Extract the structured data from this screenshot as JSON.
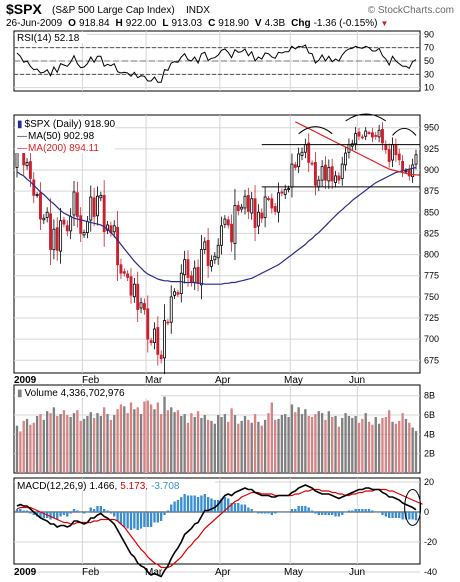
{
  "header": {
    "symbol": "$SPX",
    "name": "(S&P 500 Large Cap Index)",
    "exchange": "INDX",
    "watermark": "© StockCharts.com",
    "date": "26-Jun-2009",
    "o_label": "O",
    "o_value": "918.84",
    "h_label": "H",
    "h_value": "922.00",
    "l_label": "L",
    "l_value": "913.03",
    "c_label": "C",
    "c_value": "918.90",
    "v_label": "V",
    "v_value": "4.3B",
    "chg_label": "Chg",
    "chg_value": "-1.36 (-0.15%)",
    "chg_marker": "▼"
  },
  "colors": {
    "up": "#000000",
    "down": "#cc1f2e",
    "ma50": "#2a2a8c",
    "ma200": "#dd2222",
    "rsi": "#000000",
    "macd": "#000000",
    "signal": "#dd0000",
    "histogram": "#3a8ed0",
    "vol_up": "#808080",
    "vol_down": "#d98484",
    "grid": "#d6d6d6",
    "annotation": "#000000"
  },
  "rsi_panel": {
    "legend": "RSI(14) 52.18",
    "ticks": [
      "90",
      "70",
      "50",
      "30",
      "10"
    ]
  },
  "price_panel": {
    "legend_main": "$SPX (Daily) 918.90",
    "legend_ma50": "MA(50) 902.98",
    "legend_ma200": "MA(200) 894.11",
    "ticks": [
      "950",
      "925",
      "900",
      "875",
      "850",
      "825",
      "800",
      "775",
      "750",
      "725",
      "700",
      "675"
    ]
  },
  "volume_panel": {
    "legend": "Volume 4,336,702,976",
    "ticks": [
      "8B",
      "6B",
      "4B",
      "2B"
    ]
  },
  "macd_panel": {
    "legend_label": "MACD(12,26,9)",
    "legend_macd": "1.466,",
    "legend_signal": "5.173,",
    "legend_hist": "-3.708",
    "ticks": [
      "20",
      "0",
      "-20",
      "-40"
    ]
  },
  "x_axis": {
    "year": "2009",
    "months": [
      "Feb",
      "Mar",
      "Apr",
      "May",
      "Jun"
    ]
  },
  "chart_data": {
    "type": "candlestick",
    "period": "daily, 2-Jan-2009 to 26-Jun-2009",
    "month_starts": [
      {
        "label": "2009",
        "index": 0
      },
      {
        "label": "Feb",
        "index": 20
      },
      {
        "label": "Mar",
        "index": 39
      },
      {
        "label": "Apr",
        "index": 61
      },
      {
        "label": "May",
        "index": 82
      },
      {
        "label": "Jun",
        "index": 102
      }
    ],
    "close": [
      931,
      927,
      906,
      909,
      890,
      870,
      871,
      842,
      843,
      850,
      806,
      830,
      805,
      840,
      836,
      828,
      845,
      874,
      845,
      825,
      826,
      839,
      868,
      845,
      869,
      870,
      827,
      835,
      826,
      834,
      788,
      778,
      778,
      773,
      752,
      765,
      735,
      743,
      735,
      700,
      696,
      712,
      682,
      677,
      722,
      720,
      750,
      756,
      753,
      778,
      794,
      773,
      768,
      784,
      766,
      806,
      815,
      787,
      793,
      798,
      811,
      834,
      842,
      835,
      815,
      858,
      852,
      856,
      869,
      851,
      866,
      832,
      850,
      843,
      868,
      866,
      855,
      851,
      873,
      873,
      877,
      878,
      907,
      903,
      919,
      921,
      930,
      909,
      908,
      882,
      888,
      904,
      888,
      903,
      887,
      893,
      888,
      907,
      920,
      930,
      931,
      943,
      940,
      939,
      946,
      944,
      939,
      940,
      947,
      932,
      924,
      910,
      930,
      918,
      912,
      899,
      899,
      893,
      906,
      918
    ],
    "ma50": [
      898,
      895,
      893,
      889,
      886,
      882,
      878,
      874,
      871,
      867,
      863,
      860,
      856,
      852,
      849,
      847,
      845,
      843,
      842,
      841,
      840,
      839,
      838,
      837,
      836,
      835,
      833,
      830,
      826,
      822,
      817,
      812,
      807,
      802,
      797,
      792,
      788,
      784,
      780,
      777,
      775,
      773,
      771,
      770,
      769,
      769,
      768,
      768,
      768,
      768,
      767,
      767,
      767,
      767,
      766,
      766,
      765,
      765,
      765,
      765,
      765,
      765,
      766,
      766,
      767,
      767,
      768,
      769,
      770,
      771,
      772,
      774,
      776,
      778,
      780,
      782,
      784,
      786,
      788,
      791,
      794,
      797,
      800,
      803,
      806,
      809,
      812,
      816,
      819,
      823,
      826,
      830,
      834,
      838,
      842,
      846,
      850,
      853,
      857,
      860,
      864,
      867,
      870,
      873,
      876,
      879,
      882,
      885,
      887,
      889,
      891,
      893,
      895,
      897,
      898,
      899,
      900,
      901,
      902,
      902.98
    ],
    "ma200_start_index": 83,
    "ma200": [
      957,
      955,
      953,
      951,
      949,
      947,
      945,
      943,
      941,
      939,
      937,
      935,
      933,
      931,
      929,
      927,
      925,
      923,
      921,
      919,
      917,
      915,
      913,
      911,
      909,
      907,
      905,
      903,
      901,
      900,
      899,
      898,
      897,
      896,
      895,
      894.5,
      894.2,
      894.11
    ],
    "rsi": [
      62,
      57,
      48,
      50,
      42,
      37,
      38,
      32,
      33,
      37,
      28,
      41,
      33,
      46,
      44,
      42,
      48,
      58,
      46,
      40,
      41,
      46,
      56,
      48,
      57,
      57,
      42,
      45,
      43,
      46,
      34,
      32,
      33,
      32,
      27,
      33,
      25,
      28,
      27,
      20,
      20,
      26,
      18,
      18,
      37,
      36,
      47,
      49,
      48,
      56,
      61,
      52,
      50,
      56,
      47,
      61,
      63,
      51,
      54,
      55,
      59,
      66,
      68,
      63,
      55,
      67,
      63,
      64,
      68,
      58,
      64,
      50,
      56,
      53,
      62,
      61,
      56,
      54,
      63,
      62,
      64,
      64,
      72,
      68,
      72,
      71,
      74,
      62,
      61,
      47,
      51,
      59,
      50,
      57,
      49,
      53,
      50,
      59,
      65,
      68,
      69,
      72,
      70,
      69,
      72,
      70,
      65,
      65,
      69,
      58,
      53,
      44,
      57,
      50,
      46,
      42,
      42,
      39,
      49,
      52.18
    ],
    "volume": [
      4.9,
      4.3,
      5.4,
      5.6,
      5.0,
      5.2,
      5.9,
      6.1,
      5.5,
      6.4,
      6.2,
      6.8,
      5.9,
      6.1,
      6.5,
      6.0,
      5.8,
      6.2,
      6.5,
      5.4,
      5.6,
      5.9,
      6.3,
      5.7,
      6.2,
      5.9,
      6.8,
      6.1,
      5.5,
      6.0,
      6.6,
      7.1,
      6.9,
      6.2,
      7.3,
      6.6,
      6.8,
      6.1,
      7.4,
      7.5,
      7.1,
      6.6,
      7.3,
      6.1,
      7.9,
      6.5,
      6.8,
      6.3,
      6.5,
      5.9,
      6.1,
      5.2,
      6.2,
      5.8,
      6.4,
      5.7,
      6.0,
      5.5,
      5.4,
      5.1,
      6.0,
      5.8,
      6.1,
      5.3,
      6.7,
      6.0,
      5.1,
      5.4,
      5.9,
      5.5,
      5.2,
      6.1,
      5.3,
      4.9,
      5.5,
      6.2,
      7.3,
      5.5,
      5.6,
      6.0,
      6.1,
      5.8,
      7.1,
      6.3,
      6.8,
      6.1,
      6.6,
      5.9,
      5.8,
      6.1,
      6.4,
      6.2,
      5.5,
      6.4,
      5.8,
      5.9,
      4.8,
      5.7,
      6.2,
      5.9,
      5.7,
      5.9,
      5.2,
      5.6,
      6.2,
      5.3,
      5.0,
      5.8,
      5.1,
      5.7,
      5.8,
      6.5,
      5.3,
      5.1,
      5.4,
      6.2,
      5.6,
      5.2,
      4.7,
      4.34
    ],
    "macd": [
      4,
      5,
      4,
      4,
      2,
      0,
      -2,
      -4,
      -5,
      -6,
      -8,
      -8,
      -10,
      -9,
      -9,
      -10,
      -9,
      -6,
      -6,
      -7,
      -8,
      -7,
      -4,
      -4,
      -2,
      -1,
      -3,
      -4,
      -6,
      -8,
      -12,
      -16,
      -20,
      -24,
      -28,
      -30,
      -34,
      -36,
      -37,
      -40,
      -42,
      -41,
      -42,
      -43,
      -39,
      -36,
      -31,
      -27,
      -24,
      -20,
      -15,
      -13,
      -11,
      -8,
      -7,
      -3,
      1,
      1,
      2,
      3,
      5,
      8,
      11,
      12,
      11,
      13,
      14,
      15,
      16,
      15,
      15,
      13,
      12,
      11,
      11,
      11,
      10,
      10,
      11,
      11,
      11,
      11,
      13,
      14,
      16,
      17,
      18,
      17,
      16,
      14,
      13,
      12,
      12,
      12,
      11,
      10,
      9,
      10,
      11,
      12,
      13,
      14,
      15,
      15,
      16,
      16,
      15,
      15,
      15,
      13,
      12,
      10,
      10,
      9,
      8,
      6,
      5,
      4,
      3,
      1.466
    ],
    "signal": [
      2,
      3,
      3,
      3,
      3,
      2,
      1,
      0,
      -1,
      -2,
      -3,
      -4,
      -5,
      -6,
      -7,
      -7,
      -8,
      -8,
      -7,
      -7,
      -7,
      -7,
      -7,
      -6,
      -6,
      -5,
      -5,
      -5,
      -5,
      -5,
      -6,
      -8,
      -10,
      -13,
      -16,
      -19,
      -22,
      -25,
      -27,
      -30,
      -32,
      -34,
      -35,
      -37,
      -37,
      -37,
      -36,
      -34,
      -32,
      -30,
      -27,
      -24,
      -22,
      -19,
      -17,
      -14,
      -11,
      -9,
      -7,
      -5,
      -3,
      -1,
      1,
      3,
      5,
      7,
      8,
      10,
      11,
      12,
      13,
      13,
      13,
      12,
      12,
      12,
      12,
      11,
      11,
      11,
      11,
      11,
      11,
      12,
      12,
      13,
      14,
      14,
      15,
      15,
      15,
      14,
      14,
      14,
      13,
      13,
      12,
      12,
      11,
      11,
      12,
      12,
      13,
      13,
      14,
      14,
      14,
      15,
      15,
      15,
      15,
      14,
      14,
      13,
      12,
      11,
      10,
      9,
      8,
      7,
      6,
      5.173
    ],
    "histogram_note": "MACD minus signal, drawn as bars (-3.708 at last bar)"
  }
}
